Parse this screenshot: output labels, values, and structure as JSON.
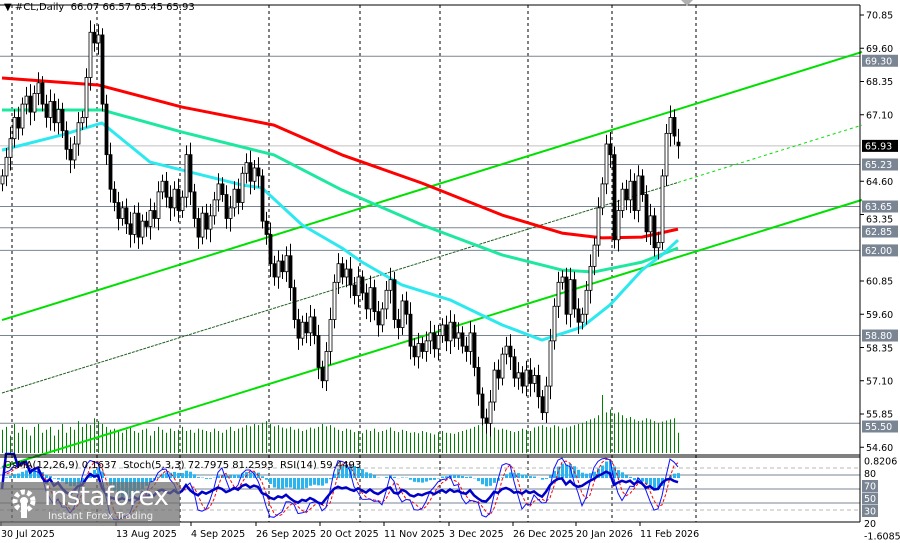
{
  "header": {
    "symbol": "#CL,Daily",
    "open": "66.07",
    "high": "66.57",
    "low": "65.45",
    "close": "65.93"
  },
  "indicator_header": {
    "osma": "OsMA(12,26,9) 0.1637",
    "stoch": "Stoch(5,3,3) 72.7975 81.2593",
    "rsi": "RSI(14) 59.4493"
  },
  "logo": {
    "brand": "instaforex",
    "tagline": "Instant Forex Trading"
  },
  "colors": {
    "ma_slow": "#ff0000",
    "ma_mid": "#1ee8a0",
    "ma_fast": "#2ee8f0",
    "channel": "#00e000",
    "volume": "#008000",
    "level_line": "#7a8594",
    "osma": "#29b6f0",
    "stoch_main": "#1010ff",
    "stoch_signal": "#ff0000",
    "rsi": "#0000c8"
  },
  "chart_data": [
    {
      "type": "candlestick",
      "title": "#CL,Daily",
      "y_ticks": [
        "70.85",
        "69.60",
        "68.35",
        "67.10",
        "64.60",
        "63.35",
        "60.85",
        "59.60",
        "58.35",
        "57.10",
        "55.85",
        "54.60"
      ],
      "ylim": [
        54.6,
        70.85
      ],
      "current_price": "65.93",
      "levels": [
        "69.30",
        "65.23",
        "63.65",
        "62.85",
        "62.00",
        "58.80",
        "55.50"
      ],
      "x_labels": [
        "30 Jul 2025",
        "13 Aug 2025",
        "4 Sep 2025",
        "26 Sep 2025",
        "20 Oct 2025",
        "11 Nov 2025",
        "3 Dec 2025",
        "26 Dec 2025",
        "20 Jan 2026",
        "11 Feb 2026"
      ],
      "last_bar": {
        "open": 66.07,
        "high": 66.57,
        "low": 65.45,
        "close": 65.93
      },
      "closes": [
        64.8,
        65.5,
        66.2,
        67.0,
        66.6,
        67.5,
        67.8,
        67.2,
        67.9,
        68.3,
        67.5,
        67.0,
        67.6,
        66.8,
        67.3,
        66.5,
        65.8,
        65.4,
        66.0,
        66.8,
        67.0,
        68.5,
        70.2,
        69.8,
        70.1,
        67.5,
        65.6,
        64.3,
        63.8,
        63.2,
        63.6,
        63.0,
        62.6,
        63.4,
        62.5,
        63.1,
        62.9,
        63.5,
        63.2,
        64.2,
        64.6,
        64.0,
        63.6,
        64.3,
        63.5,
        64.0,
        65.6,
        64.2,
        63.2,
        62.5,
        63.4,
        62.8,
        63.3,
        63.9,
        64.5,
        64.1,
        63.2,
        63.6,
        64.3,
        63.8,
        64.9,
        65.3,
        64.6,
        65.1,
        64.8,
        63.1,
        62.6,
        61.5,
        61.0,
        61.6,
        61.2,
        61.8,
        60.6,
        59.4,
        58.7,
        59.3,
        58.9,
        59.5,
        58.8,
        57.6,
        57.1,
        58.2,
        59.4,
        60.8,
        61.5,
        61.0,
        61.3,
        60.7,
        60.3,
        61.0,
        60.4,
        59.8,
        60.6,
        59.7,
        59.2,
        59.8,
        60.5,
        60.9,
        59.4,
        59.1,
        60.1,
        59.6,
        58.4,
        58.0,
        58.5,
        58.2,
        58.6,
        58.9,
        58.3,
        58.8,
        59.2,
        58.6,
        59.3,
        58.7,
        58.9,
        58.4,
        58.2,
        58.9,
        57.6,
        56.6,
        55.7,
        55.5,
        56.3,
        57.5,
        57.2,
        58.1,
        58.4,
        58.0,
        57.2,
        57.4,
        56.9,
        57.5,
        57.0,
        57.3,
        56.5,
        55.9,
        56.9,
        58.6,
        59.9,
        60.8,
        61.0,
        59.6,
        60.9,
        59.8,
        59.3,
        59.6,
        60.5,
        61.4,
        62.2,
        63.6,
        64.5,
        66.0,
        65.6,
        62.4,
        63.5,
        64.3,
        63.9,
        64.6,
        63.5,
        64.8,
        64.1,
        62.7,
        63.3,
        62.1,
        62.3,
        64.8,
        66.4,
        67.0,
        66.3,
        65.93
      ],
      "volume": [
        40,
        45,
        30,
        50,
        35,
        45,
        40,
        30,
        45,
        50,
        35,
        40,
        45,
        30,
        40,
        50,
        35,
        45,
        40,
        55,
        45,
        50,
        48,
        60,
        55,
        50,
        45,
        40,
        42,
        38,
        35,
        40,
        45,
        38,
        35,
        40,
        42,
        30,
        38,
        45,
        40,
        35,
        42,
        38,
        40,
        45,
        38,
        40,
        35,
        42,
        40,
        38,
        36,
        42,
        38,
        35,
        40,
        45,
        38,
        42,
        44,
        48,
        46,
        50,
        48,
        52,
        55,
        50,
        46,
        48,
        44,
        42,
        45,
        40,
        42,
        38,
        40,
        44,
        42,
        45,
        50,
        46,
        48,
        44,
        40,
        38,
        42,
        40,
        36,
        38,
        34,
        40,
        38,
        42,
        36,
        38,
        40,
        44,
        38,
        36,
        40,
        38,
        35,
        36,
        34,
        38,
        36,
        34,
        32,
        36,
        38,
        35,
        34,
        33,
        36,
        38,
        40,
        42,
        45,
        48,
        52,
        50,
        46,
        44,
        40,
        42,
        40,
        38,
        36,
        38,
        42,
        40,
        38,
        44,
        46,
        48,
        45,
        44,
        48,
        46,
        42,
        44,
        46,
        48,
        50,
        52,
        55,
        58,
        60,
        65,
        100,
        70,
        75,
        68,
        70,
        65,
        60,
        62,
        58,
        55,
        56,
        60,
        58,
        55,
        52,
        54,
        56,
        58,
        60,
        35
      ],
      "moving_averages": [
        {
          "color_key": "ma_slow",
          "points": [
            [
              0,
              68.48
            ],
            [
              24,
              68.22
            ],
            [
              45,
              67.39
            ],
            [
              68,
              66.71
            ],
            [
              85,
              65.59
            ],
            [
              105,
              64.53
            ],
            [
              125,
              63.33
            ],
            [
              140,
              62.65
            ],
            [
              150,
              62.47
            ],
            [
              160,
              62.5
            ],
            [
              169,
              62.8
            ]
          ]
        },
        {
          "color_key": "ma_mid",
          "points": [
            [
              0,
              67.28
            ],
            [
              25,
              67.28
            ],
            [
              45,
              66.45
            ],
            [
              68,
              65.59
            ],
            [
              85,
              64.27
            ],
            [
              105,
              62.96
            ],
            [
              125,
              61.83
            ],
            [
              140,
              61.26
            ],
            [
              148,
              61.19
            ],
            [
              160,
              61.56
            ],
            [
              169,
              62.09
            ]
          ]
        },
        {
          "color_key": "ma_fast",
          "points": [
            [
              0,
              65.77
            ],
            [
              15,
              66.34
            ],
            [
              25,
              66.79
            ],
            [
              37,
              65.32
            ],
            [
              45,
              65.02
            ],
            [
              60,
              64.46
            ],
            [
              65,
              64.35
            ],
            [
              75,
              62.96
            ],
            [
              85,
              62.09
            ],
            [
              90,
              61.56
            ],
            [
              100,
              60.7
            ],
            [
              112,
              60.14
            ],
            [
              125,
              59.2
            ],
            [
              135,
              58.63
            ],
            [
              145,
              59.12
            ],
            [
              152,
              59.95
            ],
            [
              160,
              61.26
            ],
            [
              165,
              61.83
            ],
            [
              169,
              62.39
            ]
          ]
        }
      ],
      "channel": {
        "upper": [
          [
            0,
            59.38
          ],
          [
            215,
            69.46
          ]
        ],
        "middle": [
          [
            0,
            56.64
          ],
          [
            215,
            66.71
          ]
        ],
        "lower": [
          [
            0,
            53.86
          ],
          [
            215,
            63.9
          ]
        ]
      }
    },
    {
      "type": "indicator-panel",
      "indicators": [
        "OsMA(12,26,9)",
        "Stoch(5,3,3)",
        "RSI(14)"
      ],
      "osma_range": [
        "0.8206",
        "-1.6085"
      ],
      "levels": [
        "80",
        "70",
        "50",
        "30",
        "20"
      ],
      "values": {
        "osma": 0.1637,
        "stoch_main": 72.7975,
        "stoch_signal": 81.2593,
        "rsi": 59.4493
      }
    }
  ]
}
